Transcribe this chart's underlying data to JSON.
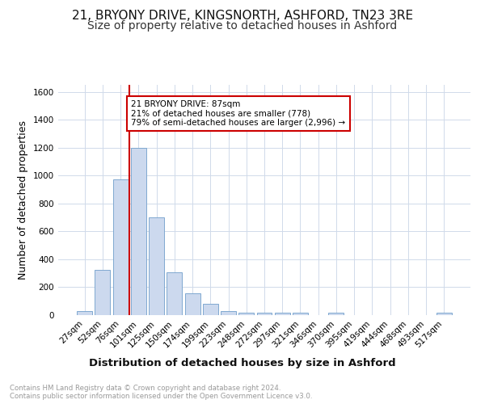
{
  "title1": "21, BRYONY DRIVE, KINGSNORTH, ASHFORD, TN23 3RE",
  "title2": "Size of property relative to detached houses in Ashford",
  "xlabel": "Distribution of detached houses by size in Ashford",
  "ylabel": "Number of detached properties",
  "categories": [
    "27sqm",
    "52sqm",
    "76sqm",
    "101sqm",
    "125sqm",
    "150sqm",
    "174sqm",
    "199sqm",
    "223sqm",
    "248sqm",
    "272sqm",
    "297sqm",
    "321sqm",
    "346sqm",
    "370sqm",
    "395sqm",
    "419sqm",
    "444sqm",
    "468sqm",
    "493sqm",
    "517sqm"
  ],
  "values": [
    30,
    325,
    970,
    1200,
    700,
    305,
    155,
    80,
    30,
    18,
    15,
    15,
    15,
    0,
    15,
    0,
    0,
    0,
    0,
    0,
    15
  ],
  "bar_color": "#ccd9ee",
  "bar_edge_color": "#7fa8d0",
  "vline_x": 2.5,
  "vline_color": "#cc0000",
  "annotation_text_line1": "21 BRYONY DRIVE: 87sqm",
  "annotation_text_line2": "21% of detached houses are smaller (778)",
  "annotation_text_line3": "79% of semi-detached houses are larger (2,996) →",
  "ylim": [
    0,
    1650
  ],
  "yticks": [
    0,
    200,
    400,
    600,
    800,
    1000,
    1200,
    1400,
    1600
  ],
  "footnote": "Contains HM Land Registry data © Crown copyright and database right 2024.\nContains public sector information licensed under the Open Government Licence v3.0.",
  "bg_color": "#ffffff",
  "grid_color": "#d0daea",
  "title1_fontsize": 11,
  "title2_fontsize": 10,
  "xlabel_fontsize": 9.5,
  "ylabel_fontsize": 9
}
